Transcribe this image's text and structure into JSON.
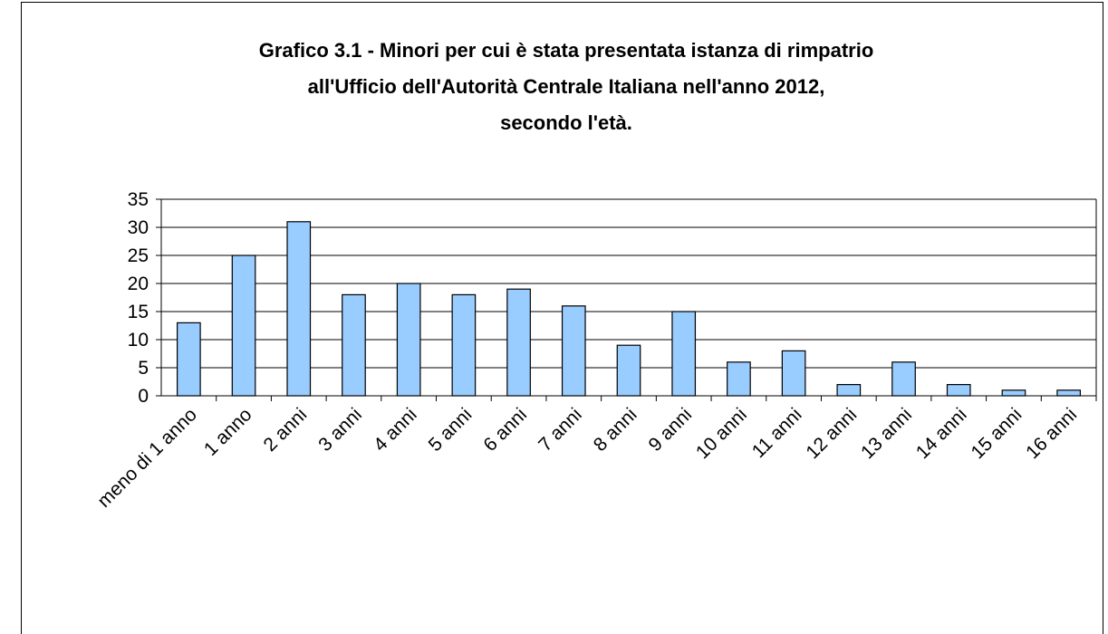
{
  "chart_data": {
    "type": "bar",
    "title": [
      "Grafico 3.1 - Minori per cui è stata presentata istanza di rimpatrio",
      "all'Ufficio dell'Autorità Centrale Italiana nell'anno 2012,",
      "secondo l'età."
    ],
    "categories": [
      "meno di 1 anno",
      "1 anno",
      "2 anni",
      "3 anni",
      "4 anni",
      "5 anni",
      "6 anni",
      "7 anni",
      "8 anni",
      "9 anni",
      "10 anni",
      "11 anni",
      "12 anni",
      "13 anni",
      "14 anni",
      "15 anni",
      "16 anni"
    ],
    "values": [
      13,
      25,
      31,
      18,
      20,
      18,
      19,
      16,
      9,
      15,
      6,
      8,
      2,
      6,
      2,
      1,
      1
    ],
    "color": "#99ccff",
    "ylim": [
      0,
      35
    ],
    "yticks": [
      0,
      5,
      10,
      15,
      20,
      25,
      30,
      35
    ],
    "grid": true
  }
}
